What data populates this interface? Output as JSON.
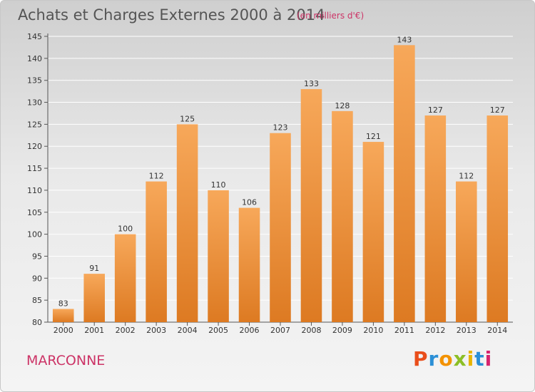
{
  "header": {
    "title": "Achats et Charges Externes 2000 à 2014",
    "subtitle": "(en milliers d'€)"
  },
  "footer": {
    "place": "MARCONNE",
    "logo": "Proxiti",
    "logo_colors": [
      "#e94e1b",
      "#2b8fd6",
      "#f39200",
      "#8cbf26",
      "#e8b400",
      "#2b8fd6",
      "#d6246e"
    ]
  },
  "colors": {
    "bar_top": "#f7a85a",
    "bar_bottom": "#dd7a22",
    "grid": "#ffffff"
  },
  "chart_data": {
    "type": "bar",
    "categories": [
      "2000",
      "2001",
      "2002",
      "2003",
      "2004",
      "2005",
      "2006",
      "2007",
      "2008",
      "2009",
      "2010",
      "2011",
      "2012",
      "2013",
      "2014"
    ],
    "values": [
      83,
      91,
      100,
      112,
      125,
      110,
      106,
      123,
      133,
      128,
      121,
      143,
      127,
      112,
      127
    ],
    "title": "Achats et Charges Externes 2000 à 2014",
    "xlabel": "",
    "ylabel": "",
    "ylim": [
      80,
      145
    ],
    "yticks": [
      80,
      85,
      90,
      95,
      100,
      105,
      110,
      115,
      120,
      125,
      130,
      135,
      140,
      145
    ],
    "grid": true,
    "data_labels": true
  }
}
